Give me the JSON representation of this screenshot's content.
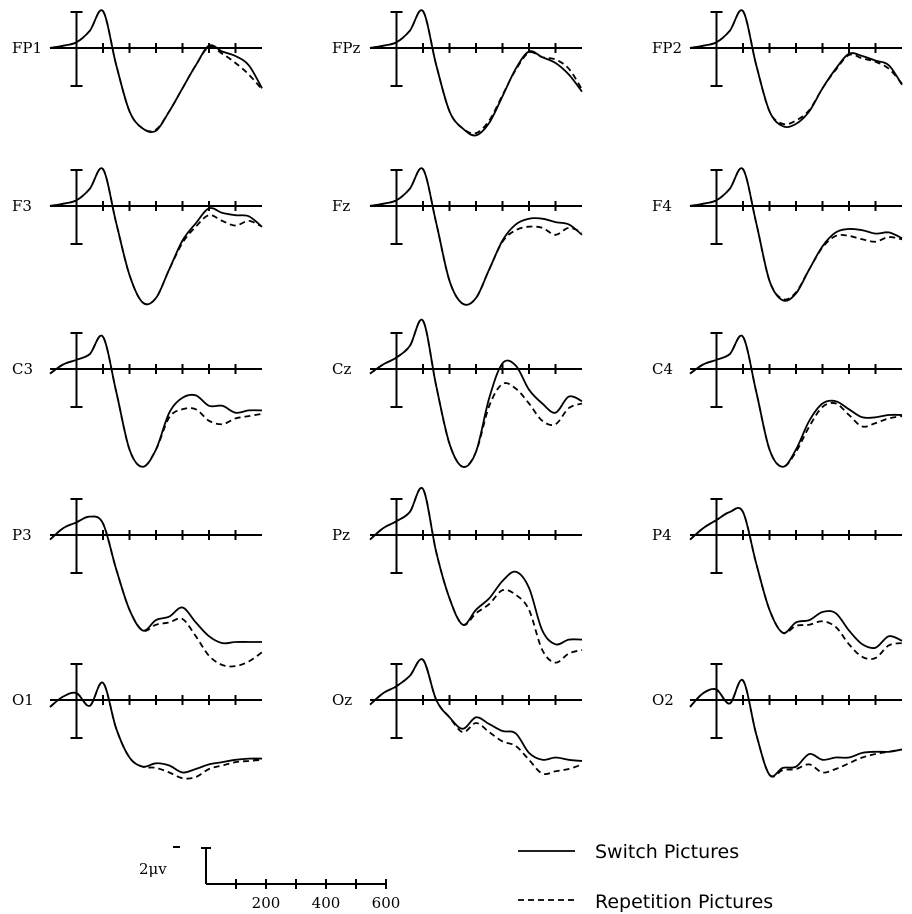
{
  "chart_data": {
    "type": "line",
    "legend": {
      "position": "bottom-right",
      "entries": [
        {
          "label": "Switch Pictures",
          "style": "solid"
        },
        {
          "label": "Repetition Pictures",
          "style": "dashed"
        }
      ]
    },
    "scale_bar": {
      "amplitude_label": "2μv",
      "time_ticks": [
        "200",
        "400",
        "600"
      ]
    },
    "x": [
      -100,
      -50,
      0,
      50,
      100,
      150,
      200,
      250,
      300,
      350,
      400,
      450,
      500,
      550,
      600,
      650,
      700
    ],
    "channels": [
      {
        "label": "FP1",
        "solid": [
          0,
          0.2,
          0.5,
          1.5,
          3.2,
          -1.5,
          -5.5,
          -7,
          -7.2,
          -5.5,
          -3.5,
          -1.5,
          0.2,
          -0.3,
          -0.7,
          -1.5,
          -3.5
        ],
        "dashed": [
          0,
          0.2,
          0.5,
          1.5,
          3.2,
          -1.5,
          -5.5,
          -7,
          -7.1,
          -5.5,
          -3.5,
          -1.5,
          0.1,
          -0.5,
          -1.3,
          -2.3,
          -3.6
        ]
      },
      {
        "label": "FPz",
        "solid": [
          0,
          0.2,
          0.5,
          1.5,
          3.2,
          -1.5,
          -5.5,
          -7,
          -7.6,
          -6.5,
          -4.2,
          -1.8,
          -0.3,
          -0.8,
          -1.3,
          -2.3,
          -3.8
        ],
        "dashed": [
          0,
          0.2,
          0.5,
          1.5,
          3.2,
          -1.5,
          -5.5,
          -7,
          -7.4,
          -6.3,
          -4.1,
          -1.9,
          -0.4,
          -0.8,
          -1.0,
          -1.8,
          -3.6
        ]
      },
      {
        "label": "FP2",
        "solid": [
          0,
          0.2,
          0.5,
          1.5,
          3.2,
          -1.5,
          -5.5,
          -6.8,
          -6.6,
          -5.5,
          -3.5,
          -1.8,
          -0.5,
          -0.7,
          -1.1,
          -1.5,
          -3.2
        ],
        "dashed": [
          0,
          0.2,
          0.5,
          1.5,
          3.2,
          -1.5,
          -5.5,
          -6.6,
          -6.3,
          -5.4,
          -3.5,
          -1.9,
          -0.6,
          -0.9,
          -1.2,
          -1.8,
          -3.1
        ]
      },
      {
        "label": "F3",
        "solid": [
          0,
          0.2,
          0.5,
          1.5,
          3.2,
          -1.5,
          -6,
          -8.4,
          -8.0,
          -5.5,
          -3.0,
          -1.5,
          -0.2,
          -0.6,
          -0.8,
          -0.9,
          -1.8
        ],
        "dashed": [
          0,
          0.2,
          0.5,
          1.5,
          3.2,
          -1.5,
          -6,
          -8.4,
          -8.0,
          -5.5,
          -3.2,
          -1.8,
          -0.8,
          -1.3,
          -1.7,
          -1.3,
          -1.8
        ]
      },
      {
        "label": "Fz",
        "solid": [
          0,
          0.2,
          0.5,
          1.5,
          3.2,
          -1.5,
          -6.5,
          -8.5,
          -8.0,
          -5.5,
          -3.0,
          -1.6,
          -1.1,
          -1.1,
          -1.4,
          -1.6,
          -2.5
        ],
        "dashed": [
          0,
          0.2,
          0.5,
          1.5,
          3.2,
          -1.5,
          -6.5,
          -8.5,
          -8.0,
          -5.5,
          -3.1,
          -2.1,
          -1.8,
          -1.9,
          -2.5,
          -1.9,
          -2.3
        ]
      },
      {
        "label": "F4",
        "solid": [
          0,
          0.2,
          0.5,
          1.5,
          3.2,
          -1.5,
          -6.5,
          -8.2,
          -7.6,
          -5.5,
          -3.5,
          -2.3,
          -2.0,
          -2.1,
          -2.4,
          -2.3,
          -2.8
        ],
        "dashed": [
          0,
          0.2,
          0.5,
          1.5,
          3.2,
          -1.5,
          -6.5,
          -8.1,
          -7.5,
          -5.5,
          -3.6,
          -2.6,
          -2.6,
          -2.9,
          -3.1,
          -2.7,
          -2.9
        ]
      },
      {
        "label": "C3",
        "solid": [
          -0.4,
          0.4,
          0.8,
          1.3,
          2.8,
          -2,
          -7,
          -8.5,
          -7,
          -3.8,
          -2.5,
          -2.3,
          -3.2,
          -3.2,
          -3.8,
          -3.6,
          -3.6
        ],
        "dashed": [
          -0.4,
          0.4,
          0.8,
          1.3,
          2.8,
          -2,
          -7,
          -8.5,
          -7,
          -4.2,
          -3.5,
          -3.5,
          -4.5,
          -4.8,
          -4.3,
          -4.1,
          -3.9
        ]
      },
      {
        "label": "Cz",
        "solid": [
          -0.4,
          0.4,
          1.0,
          2.0,
          4.2,
          -1.5,
          -6.5,
          -8.5,
          -7.2,
          -2.5,
          0.5,
          0.3,
          -1.8,
          -3.0,
          -3.8,
          -2.4,
          -2.8
        ],
        "dashed": [
          -0.4,
          0.4,
          1.0,
          2.0,
          4.2,
          -1.5,
          -6.5,
          -8.5,
          -7.2,
          -3.2,
          -1.3,
          -1.7,
          -3.0,
          -4.5,
          -4.8,
          -3.4,
          -3.0
        ]
      },
      {
        "label": "C4",
        "solid": [
          -0.4,
          0.4,
          0.8,
          1.3,
          2.8,
          -2,
          -7,
          -8.5,
          -7,
          -4.5,
          -3.0,
          -2.8,
          -3.5,
          -4.2,
          -4.2,
          -4.0,
          -4.0
        ],
        "dashed": [
          -0.4,
          0.4,
          0.8,
          1.3,
          2.8,
          -2,
          -7,
          -8.5,
          -7.2,
          -5.0,
          -3.3,
          -3.0,
          -4.0,
          -5.0,
          -4.7,
          -4.3,
          -4.1
        ]
      },
      {
        "label": "P3",
        "solid": [
          -0.4,
          0.6,
          1.1,
          1.6,
          1.0,
          -3,
          -6.5,
          -8.3,
          -7.4,
          -7.1,
          -6.3,
          -7.6,
          -8.8,
          -9.4,
          -9.3,
          -9.3,
          -9.3
        ],
        "dashed": [
          -0.4,
          0.6,
          1.1,
          1.6,
          1.0,
          -3,
          -6.5,
          -8.3,
          -7.8,
          -7.6,
          -7.3,
          -8.8,
          -10.5,
          -11.3,
          -11.4,
          -11.0,
          -10.2
        ]
      },
      {
        "label": "Pz",
        "solid": [
          -0.4,
          0.6,
          1.2,
          2.0,
          4.0,
          -1.5,
          -5.5,
          -7.8,
          -6.5,
          -5.5,
          -4.0,
          -3.2,
          -4.6,
          -8.3,
          -9.5,
          -9.1,
          -9.1
        ],
        "dashed": [
          -0.4,
          0.6,
          1.2,
          2.0,
          4.0,
          -1.5,
          -5.5,
          -7.8,
          -6.8,
          -6.0,
          -4.8,
          -5.2,
          -6.5,
          -10.0,
          -11.1,
          -10.3,
          -10.0
        ]
      },
      {
        "label": "P4",
        "solid": [
          -0.4,
          0.6,
          1.3,
          2.0,
          2.0,
          -2.5,
          -6.5,
          -8.5,
          -7.6,
          -7.4,
          -6.7,
          -6.8,
          -8.3,
          -9.5,
          -9.8,
          -8.8,
          -9.2
        ],
        "dashed": [
          -0.4,
          0.6,
          1.3,
          2.0,
          2.0,
          -2.5,
          -6.5,
          -8.5,
          -7.9,
          -7.8,
          -7.5,
          -8.0,
          -9.5,
          -10.6,
          -10.7,
          -9.6,
          -9.4
        ]
      },
      {
        "label": "O1",
        "solid": [
          -0.6,
          0.3,
          0.6,
          -0.5,
          1.5,
          -2.5,
          -5.0,
          -5.8,
          -5.5,
          -5.7,
          -6.3,
          -6.0,
          -5.6,
          -5.4,
          -5.2,
          -5.1,
          -5.1
        ],
        "dashed": [
          -0.6,
          0.3,
          0.6,
          -0.5,
          1.5,
          -2.5,
          -5.0,
          -5.8,
          -5.9,
          -6.3,
          -6.8,
          -6.7,
          -6.0,
          -5.7,
          -5.4,
          -5.3,
          -5.2
        ]
      },
      {
        "label": "Oz",
        "solid": [
          -0.4,
          0.6,
          1.2,
          2.1,
          3.5,
          0,
          -1.5,
          -2.5,
          -1.5,
          -2.1,
          -2.7,
          -2.9,
          -4.6,
          -5.2,
          -5.0,
          -5.2,
          -5.3
        ],
        "dashed": [
          -0.4,
          0.6,
          1.2,
          2.1,
          3.5,
          0,
          -1.5,
          -2.8,
          -2.0,
          -2.8,
          -3.6,
          -4.0,
          -5.2,
          -6.4,
          -6.2,
          -6.0,
          -5.6
        ]
      },
      {
        "label": "O2",
        "solid": [
          -0.6,
          0.6,
          0.9,
          -0.3,
          1.7,
          -3,
          -6.5,
          -5.9,
          -5.8,
          -4.7,
          -5.2,
          -5.0,
          -5.0,
          -4.6,
          -4.5,
          -4.5,
          -4.3
        ],
        "dashed": [
          -0.6,
          0.6,
          0.9,
          -0.3,
          1.7,
          -3,
          -6.5,
          -6.1,
          -6.0,
          -5.6,
          -6.3,
          -6.0,
          -5.5,
          -5.0,
          -4.7,
          -4.5,
          -4.3
        ]
      }
    ]
  }
}
